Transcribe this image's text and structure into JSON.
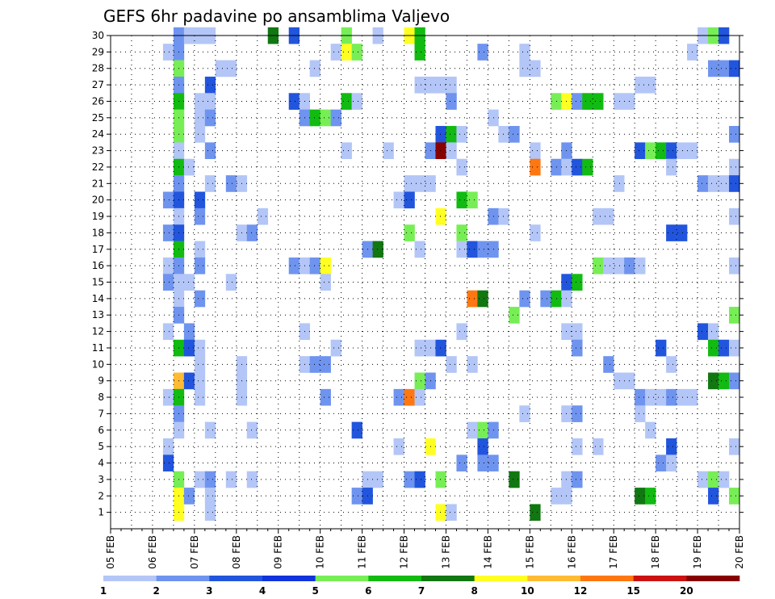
{
  "chart_data": {
    "type": "heatmap",
    "title": "GEFS 6hr padavine po ansamblima Valjevo",
    "xlabel": "",
    "ylabel": "",
    "x_tick_labels": [
      "05 FEB",
      "06 FEB",
      "07 FEB",
      "08 FEB",
      "09 FEB",
      "10 FEB",
      "11 FEB",
      "12 FEB",
      "13 FEB",
      "14 FEB",
      "15 FEB",
      "16 FEB",
      "17 FEB",
      "18 FEB",
      "19 FEB",
      "20 FEB"
    ],
    "x_range_steps": [
      0,
      60
    ],
    "steps_per_day": 4,
    "y_tick_labels": [
      "1",
      "2",
      "3",
      "4",
      "5",
      "6",
      "7",
      "8",
      "9",
      "10",
      "11",
      "12",
      "13",
      "14",
      "15",
      "16",
      "17",
      "18",
      "19",
      "20",
      "21",
      "22",
      "23",
      "24",
      "25",
      "26",
      "27",
      "28",
      "29",
      "30"
    ],
    "y_range": [
      0,
      30
    ],
    "grid": "dotted",
    "colorbar": {
      "labels": [
        "1",
        "2",
        "3",
        "4",
        "5",
        "6",
        "7",
        "8",
        "10",
        "12",
        "15",
        "20"
      ],
      "colors": [
        "#b3c6f7",
        "#6f94ef",
        "#2255dd",
        "#1133dd",
        "#77ee55",
        "#11bb11",
        "#117711",
        "#ffff22",
        "#ffbb33",
        "#ff7711",
        "#cc1111",
        "#880000"
      ]
    },
    "cells_note": "each entry is [column step index 0-59, member row 0-30, color class 1-12]",
    "cells": [
      [
        6,
        30,
        2
      ],
      [
        7,
        30,
        1
      ],
      [
        8,
        30,
        1
      ],
      [
        9,
        30,
        1
      ],
      [
        15,
        30,
        7
      ],
      [
        17,
        30,
        3
      ],
      [
        22,
        30,
        5
      ],
      [
        25,
        30,
        1
      ],
      [
        28,
        30,
        8
      ],
      [
        29,
        30,
        6
      ],
      [
        56,
        30,
        1
      ],
      [
        57,
        30,
        5
      ],
      [
        58,
        30,
        3
      ],
      [
        5,
        29,
        1
      ],
      [
        6,
        29,
        2
      ],
      [
        21,
        29,
        1
      ],
      [
        22,
        29,
        8
      ],
      [
        23,
        29,
        5
      ],
      [
        29,
        29,
        6
      ],
      [
        35,
        29,
        2
      ],
      [
        39,
        29,
        1
      ],
      [
        55,
        29,
        1
      ],
      [
        6,
        28,
        5
      ],
      [
        10,
        28,
        1
      ],
      [
        11,
        28,
        1
      ],
      [
        19,
        28,
        1
      ],
      [
        39,
        28,
        1
      ],
      [
        40,
        28,
        1
      ],
      [
        57,
        28,
        2
      ],
      [
        58,
        28,
        2
      ],
      [
        59,
        28,
        3
      ],
      [
        6,
        27,
        2
      ],
      [
        9,
        27,
        3
      ],
      [
        29,
        27,
        1
      ],
      [
        30,
        27,
        1
      ],
      [
        31,
        27,
        1
      ],
      [
        32,
        27,
        1
      ],
      [
        50,
        27,
        1
      ],
      [
        51,
        27,
        1
      ],
      [
        6,
        26,
        6
      ],
      [
        8,
        26,
        1
      ],
      [
        9,
        26,
        1
      ],
      [
        17,
        26,
        3
      ],
      [
        18,
        26,
        1
      ],
      [
        22,
        26,
        6
      ],
      [
        23,
        26,
        1
      ],
      [
        32,
        26,
        2
      ],
      [
        42,
        26,
        5
      ],
      [
        43,
        26,
        8
      ],
      [
        44,
        26,
        2
      ],
      [
        45,
        26,
        6
      ],
      [
        46,
        26,
        6
      ],
      [
        48,
        26,
        1
      ],
      [
        49,
        26,
        1
      ],
      [
        6,
        25,
        5
      ],
      [
        8,
        25,
        1
      ],
      [
        9,
        25,
        2
      ],
      [
        18,
        25,
        2
      ],
      [
        19,
        25,
        6
      ],
      [
        20,
        25,
        5
      ],
      [
        21,
        25,
        2
      ],
      [
        36,
        25,
        1
      ],
      [
        6,
        24,
        5
      ],
      [
        8,
        24,
        1
      ],
      [
        31,
        24,
        3
      ],
      [
        32,
        24,
        6
      ],
      [
        33,
        24,
        1
      ],
      [
        37,
        24,
        1
      ],
      [
        38,
        24,
        2
      ],
      [
        59,
        24,
        2
      ],
      [
        6,
        23,
        1
      ],
      [
        9,
        23,
        2
      ],
      [
        22,
        23,
        1
      ],
      [
        26,
        23,
        1
      ],
      [
        30,
        23,
        2
      ],
      [
        31,
        23,
        12
      ],
      [
        32,
        23,
        1
      ],
      [
        40,
        23,
        1
      ],
      [
        43,
        23,
        2
      ],
      [
        50,
        23,
        3
      ],
      [
        51,
        23,
        5
      ],
      [
        52,
        23,
        6
      ],
      [
        53,
        23,
        3
      ],
      [
        54,
        23,
        1
      ],
      [
        55,
        23,
        1
      ],
      [
        6,
        22,
        6
      ],
      [
        7,
        22,
        1
      ],
      [
        33,
        22,
        1
      ],
      [
        40,
        22,
        10
      ],
      [
        42,
        22,
        2
      ],
      [
        43,
        22,
        1
      ],
      [
        44,
        22,
        3
      ],
      [
        45,
        22,
        6
      ],
      [
        53,
        22,
        1
      ],
      [
        59,
        22,
        1
      ],
      [
        6,
        21,
        2
      ],
      [
        9,
        21,
        1
      ],
      [
        11,
        21,
        2
      ],
      [
        12,
        21,
        1
      ],
      [
        28,
        21,
        1
      ],
      [
        29,
        21,
        1
      ],
      [
        30,
        21,
        1
      ],
      [
        48,
        21,
        1
      ],
      [
        56,
        21,
        2
      ],
      [
        57,
        21,
        1
      ],
      [
        58,
        21,
        1
      ],
      [
        59,
        21,
        3
      ],
      [
        5,
        20,
        2
      ],
      [
        6,
        20,
        3
      ],
      [
        8,
        20,
        3
      ],
      [
        27,
        20,
        1
      ],
      [
        28,
        20,
        3
      ],
      [
        33,
        20,
        6
      ],
      [
        34,
        20,
        5
      ],
      [
        6,
        19,
        1
      ],
      [
        8,
        19,
        2
      ],
      [
        14,
        19,
        1
      ],
      [
        31,
        19,
        8
      ],
      [
        36,
        19,
        2
      ],
      [
        37,
        19,
        1
      ],
      [
        46,
        19,
        1
      ],
      [
        47,
        19,
        1
      ],
      [
        59,
        19,
        1
      ],
      [
        5,
        18,
        2
      ],
      [
        6,
        18,
        3
      ],
      [
        12,
        18,
        1
      ],
      [
        13,
        18,
        2
      ],
      [
        28,
        18,
        5
      ],
      [
        33,
        18,
        5
      ],
      [
        40,
        18,
        1
      ],
      [
        53,
        18,
        3
      ],
      [
        54,
        18,
        3
      ],
      [
        6,
        17,
        6
      ],
      [
        8,
        17,
        1
      ],
      [
        24,
        17,
        2
      ],
      [
        25,
        17,
        7
      ],
      [
        29,
        17,
        1
      ],
      [
        33,
        17,
        1
      ],
      [
        34,
        17,
        3
      ],
      [
        35,
        17,
        2
      ],
      [
        36,
        17,
        2
      ],
      [
        5,
        16,
        1
      ],
      [
        6,
        16,
        2
      ],
      [
        8,
        16,
        2
      ],
      [
        17,
        16,
        2
      ],
      [
        18,
        16,
        1
      ],
      [
        19,
        16,
        2
      ],
      [
        20,
        16,
        8
      ],
      [
        46,
        16,
        5
      ],
      [
        47,
        16,
        1
      ],
      [
        48,
        16,
        1
      ],
      [
        49,
        16,
        2
      ],
      [
        50,
        16,
        1
      ],
      [
        59,
        16,
        1
      ],
      [
        5,
        15,
        2
      ],
      [
        6,
        15,
        1
      ],
      [
        7,
        15,
        1
      ],
      [
        11,
        15,
        1
      ],
      [
        20,
        15,
        1
      ],
      [
        43,
        15,
        3
      ],
      [
        44,
        15,
        6
      ],
      [
        6,
        14,
        1
      ],
      [
        8,
        14,
        2
      ],
      [
        34,
        14,
        10
      ],
      [
        35,
        14,
        7
      ],
      [
        39,
        14,
        2
      ],
      [
        41,
        14,
        2
      ],
      [
        42,
        14,
        6
      ],
      [
        43,
        14,
        1
      ],
      [
        6,
        13,
        2
      ],
      [
        38,
        13,
        5
      ],
      [
        59,
        13,
        5
      ],
      [
        5,
        12,
        1
      ],
      [
        7,
        12,
        2
      ],
      [
        18,
        12,
        1
      ],
      [
        33,
        12,
        1
      ],
      [
        43,
        12,
        1
      ],
      [
        44,
        12,
        1
      ],
      [
        56,
        12,
        3
      ],
      [
        57,
        12,
        1
      ],
      [
        6,
        11,
        6
      ],
      [
        7,
        11,
        3
      ],
      [
        8,
        11,
        1
      ],
      [
        21,
        11,
        1
      ],
      [
        29,
        11,
        1
      ],
      [
        30,
        11,
        1
      ],
      [
        31,
        11,
        3
      ],
      [
        44,
        11,
        2
      ],
      [
        52,
        11,
        3
      ],
      [
        57,
        11,
        6
      ],
      [
        58,
        11,
        3
      ],
      [
        59,
        11,
        1
      ],
      [
        8,
        10,
        1
      ],
      [
        12,
        10,
        1
      ],
      [
        18,
        10,
        1
      ],
      [
        19,
        10,
        2
      ],
      [
        20,
        10,
        2
      ],
      [
        32,
        10,
        1
      ],
      [
        34,
        10,
        1
      ],
      [
        47,
        10,
        2
      ],
      [
        53,
        10,
        1
      ],
      [
        6,
        9,
        9
      ],
      [
        7,
        9,
        3
      ],
      [
        8,
        9,
        1
      ],
      [
        12,
        9,
        1
      ],
      [
        29,
        9,
        5
      ],
      [
        30,
        9,
        2
      ],
      [
        48,
        9,
        1
      ],
      [
        49,
        9,
        1
      ],
      [
        57,
        9,
        7
      ],
      [
        58,
        9,
        6
      ],
      [
        59,
        9,
        2
      ],
      [
        5,
        8,
        1
      ],
      [
        6,
        8,
        6
      ],
      [
        8,
        8,
        1
      ],
      [
        12,
        8,
        1
      ],
      [
        20,
        8,
        2
      ],
      [
        27,
        8,
        2
      ],
      [
        28,
        8,
        10
      ],
      [
        29,
        8,
        1
      ],
      [
        50,
        8,
        2
      ],
      [
        51,
        8,
        1
      ],
      [
        52,
        8,
        1
      ],
      [
        53,
        8,
        2
      ],
      [
        54,
        8,
        1
      ],
      [
        55,
        8,
        1
      ],
      [
        6,
        7,
        2
      ],
      [
        39,
        7,
        1
      ],
      [
        43,
        7,
        1
      ],
      [
        44,
        7,
        2
      ],
      [
        50,
        7,
        1
      ],
      [
        6,
        6,
        1
      ],
      [
        9,
        6,
        1
      ],
      [
        13,
        6,
        1
      ],
      [
        23,
        6,
        3
      ],
      [
        34,
        6,
        1
      ],
      [
        35,
        6,
        5
      ],
      [
        36,
        6,
        2
      ],
      [
        51,
        6,
        1
      ],
      [
        5,
        5,
        1
      ],
      [
        27,
        5,
        1
      ],
      [
        30,
        5,
        8
      ],
      [
        35,
        5,
        3
      ],
      [
        44,
        5,
        1
      ],
      [
        46,
        5,
        1
      ],
      [
        53,
        5,
        3
      ],
      [
        59,
        5,
        1
      ],
      [
        5,
        4,
        3
      ],
      [
        33,
        4,
        2
      ],
      [
        35,
        4,
        2
      ],
      [
        36,
        4,
        2
      ],
      [
        52,
        4,
        2
      ],
      [
        53,
        4,
        1
      ],
      [
        6,
        3,
        5
      ],
      [
        8,
        3,
        1
      ],
      [
        9,
        3,
        2
      ],
      [
        11,
        3,
        1
      ],
      [
        13,
        3,
        1
      ],
      [
        24,
        3,
        1
      ],
      [
        25,
        3,
        1
      ],
      [
        28,
        3,
        2
      ],
      [
        29,
        3,
        3
      ],
      [
        31,
        3,
        5
      ],
      [
        38,
        3,
        7
      ],
      [
        43,
        3,
        1
      ],
      [
        44,
        3,
        2
      ],
      [
        56,
        3,
        1
      ],
      [
        57,
        3,
        5
      ],
      [
        58,
        3,
        1
      ],
      [
        6,
        2,
        8
      ],
      [
        7,
        2,
        2
      ],
      [
        9,
        2,
        1
      ],
      [
        23,
        2,
        2
      ],
      [
        24,
        2,
        3
      ],
      [
        42,
        2,
        1
      ],
      [
        43,
        2,
        1
      ],
      [
        50,
        2,
        7
      ],
      [
        51,
        2,
        6
      ],
      [
        57,
        2,
        3
      ],
      [
        59,
        2,
        5
      ],
      [
        6,
        1,
        8
      ],
      [
        9,
        1,
        1
      ],
      [
        31,
        1,
        8
      ],
      [
        32,
        1,
        1
      ],
      [
        40,
        1,
        7
      ]
    ]
  }
}
